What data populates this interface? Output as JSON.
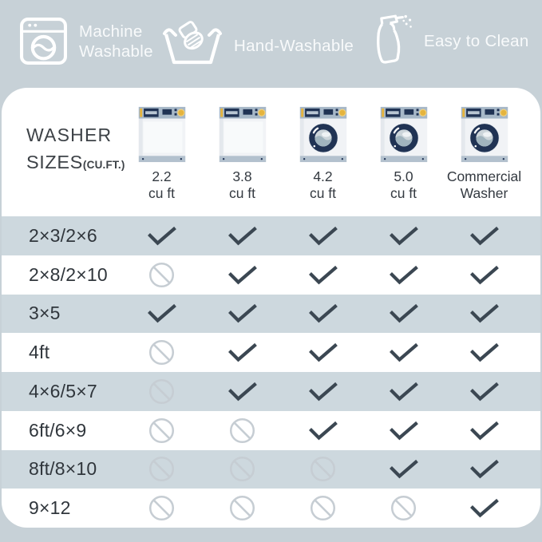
{
  "badges": [
    {
      "label": "Machine Washable",
      "icon": "washing-machine-icon"
    },
    {
      "label": "Hand-Washable",
      "icon": "hand-wash-tub-icon"
    },
    {
      "label": "Easy to Clean",
      "icon": "spray-bottle-icon"
    }
  ],
  "table": {
    "title_line1": "WASHER",
    "title_line2": "SIZES",
    "title_small": "(CU.FT.)",
    "columns": [
      {
        "line1": "2.2",
        "line2": "cu ft",
        "washer": "top-load"
      },
      {
        "line1": "3.8",
        "line2": "cu ft",
        "washer": "top-load"
      },
      {
        "line1": "4.2",
        "line2": "cu ft",
        "washer": "front-load"
      },
      {
        "line1": "5.0",
        "line2": "cu ft",
        "washer": "front-load"
      },
      {
        "line1": "Commercial",
        "line2": "Washer",
        "washer": "front-load"
      }
    ],
    "rows": [
      {
        "label": "2×3/2×6",
        "cells": [
          "check",
          "check",
          "check",
          "check",
          "check"
        ]
      },
      {
        "label": "2×8/2×10",
        "cells": [
          "no",
          "check",
          "check",
          "check",
          "check"
        ]
      },
      {
        "label": "3×5",
        "cells": [
          "check",
          "check",
          "check",
          "check",
          "check"
        ]
      },
      {
        "label": "4ft",
        "cells": [
          "no",
          "check",
          "check",
          "check",
          "check"
        ]
      },
      {
        "label": "4×6/5×7",
        "cells": [
          "no",
          "check",
          "check",
          "check",
          "check"
        ]
      },
      {
        "label": "6ft/6×9",
        "cells": [
          "no",
          "no",
          "check",
          "check",
          "check"
        ]
      },
      {
        "label": "8ft/8×10",
        "cells": [
          "no",
          "no",
          "no",
          "check",
          "check"
        ]
      },
      {
        "label": "9×12",
        "cells": [
          "no",
          "no",
          "no",
          "no",
          "check"
        ]
      }
    ]
  },
  "colors": {
    "bg": "#c7d1d7",
    "card": "#ffffff",
    "band": "#cdd8de",
    "badge-text": "#f8fafb",
    "title-text": "#3d4247",
    "row-text": "#30363c",
    "col-text": "#343a41",
    "check": "#3b4752",
    "no": "#c6cdd3",
    "washer-navy": "#203354",
    "washer-gold": "#e5b43e",
    "washer-panel": "#a7b8c8",
    "washer-body": "#f1f3f6",
    "washer-base": "#b3c1ce",
    "washer-drum": "#ccd5da",
    "washer-swirl": "#a0b4be"
  }
}
